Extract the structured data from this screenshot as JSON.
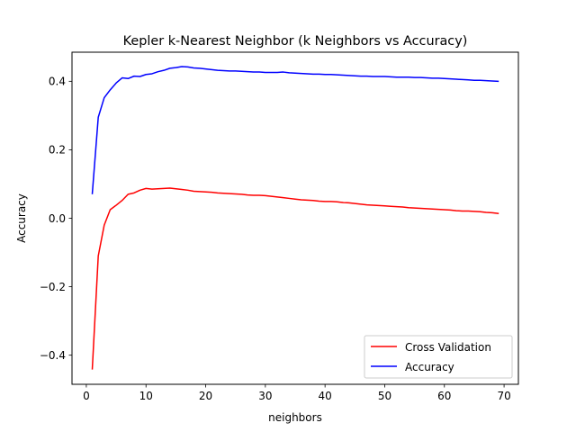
{
  "chart_data": {
    "type": "line",
    "title": "Kepler k-Nearest Neighbor (k Neighbors vs Accuracy)",
    "xlabel": "neighbors",
    "ylabel": "Accuracy",
    "xlim": [
      -2.4,
      72.4
    ],
    "ylim": [
      -0.485,
      0.485
    ],
    "xticks": [
      0,
      10,
      20,
      30,
      40,
      50,
      60,
      70
    ],
    "yticks": [
      -0.4,
      -0.2,
      0.0,
      0.2,
      0.4
    ],
    "xtick_labels": [
      "0",
      "10",
      "20",
      "30",
      "40",
      "50",
      "60",
      "70"
    ],
    "ytick_labels": [
      "−0.4",
      "−0.2",
      "0.0",
      "0.2",
      "0.4"
    ],
    "grid": false,
    "legend_position": "lower right",
    "x": [
      1,
      2,
      3,
      4,
      5,
      6,
      7,
      8,
      9,
      10,
      11,
      12,
      13,
      14,
      15,
      16,
      17,
      18,
      19,
      20,
      21,
      22,
      23,
      24,
      25,
      26,
      27,
      28,
      29,
      30,
      31,
      32,
      33,
      34,
      35,
      36,
      37,
      38,
      39,
      40,
      41,
      42,
      43,
      44,
      45,
      46,
      47,
      48,
      49,
      50,
      51,
      52,
      53,
      54,
      55,
      56,
      57,
      58,
      59,
      60,
      61,
      62,
      63,
      64,
      65,
      66,
      67,
      68,
      69
    ],
    "series": [
      {
        "name": "Cross Validation",
        "color": "#ff0000",
        "values": [
          -0.44,
          -0.11,
          -0.02,
          0.025,
          0.038,
          0.052,
          0.07,
          0.074,
          0.082,
          0.087,
          0.085,
          0.086,
          0.087,
          0.088,
          0.086,
          0.084,
          0.082,
          0.079,
          0.078,
          0.077,
          0.076,
          0.074,
          0.073,
          0.072,
          0.071,
          0.07,
          0.068,
          0.067,
          0.067,
          0.066,
          0.064,
          0.062,
          0.06,
          0.058,
          0.056,
          0.054,
          0.053,
          0.052,
          0.05,
          0.049,
          0.049,
          0.048,
          0.046,
          0.045,
          0.043,
          0.041,
          0.039,
          0.038,
          0.037,
          0.036,
          0.035,
          0.034,
          0.033,
          0.031,
          0.03,
          0.029,
          0.028,
          0.027,
          0.026,
          0.025,
          0.024,
          0.022,
          0.021,
          0.021,
          0.02,
          0.019,
          0.017,
          0.016,
          0.014
        ]
      },
      {
        "name": "Accuracy",
        "color": "#0000ff",
        "values": [
          0.072,
          0.295,
          0.352,
          0.375,
          0.395,
          0.41,
          0.408,
          0.415,
          0.414,
          0.42,
          0.422,
          0.428,
          0.432,
          0.438,
          0.44,
          0.443,
          0.442,
          0.439,
          0.438,
          0.436,
          0.434,
          0.432,
          0.431,
          0.43,
          0.43,
          0.429,
          0.428,
          0.427,
          0.427,
          0.426,
          0.426,
          0.426,
          0.427,
          0.425,
          0.424,
          0.423,
          0.422,
          0.421,
          0.421,
          0.42,
          0.42,
          0.419,
          0.418,
          0.417,
          0.416,
          0.415,
          0.415,
          0.414,
          0.414,
          0.414,
          0.413,
          0.412,
          0.412,
          0.412,
          0.411,
          0.411,
          0.41,
          0.409,
          0.409,
          0.408,
          0.407,
          0.406,
          0.405,
          0.404,
          0.403,
          0.403,
          0.402,
          0.401,
          0.4
        ]
      }
    ]
  }
}
